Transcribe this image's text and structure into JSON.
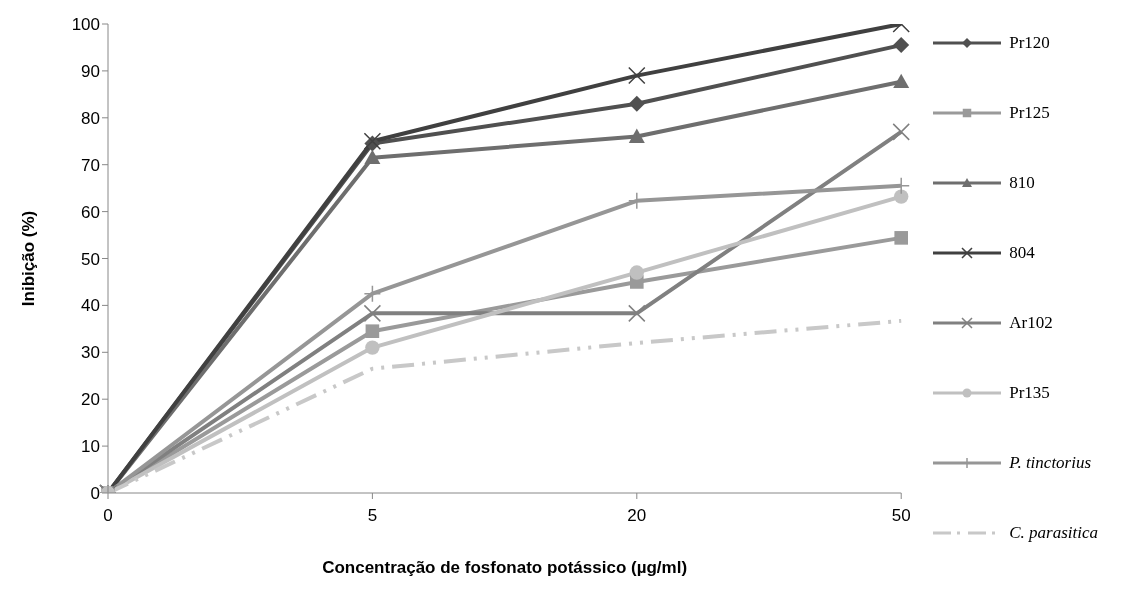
{
  "chart_data": {
    "type": "line",
    "xlabel": "Concentração de fosfonato potássico (µg/ml)",
    "ylabel": "Inibição (%)",
    "categories": [
      "0",
      "5",
      "20",
      "50"
    ],
    "series": [
      {
        "name": "Pr120",
        "color": "#505050",
        "marker": "diamond",
        "values": [
          0,
          74.5,
          83,
          95.5
        ]
      },
      {
        "name": "Pr125",
        "color": "#9a9a9a",
        "marker": "square",
        "values": [
          0,
          34.5,
          45,
          54.4
        ]
      },
      {
        "name": "810",
        "color": "#6e6e6e",
        "marker": "triangle",
        "values": [
          0,
          71.5,
          76,
          87.7
        ]
      },
      {
        "name": "804",
        "color": "#404040",
        "marker": "cross",
        "values": [
          0,
          75,
          89,
          100
        ]
      },
      {
        "name": "Ar102",
        "color": "#808080",
        "marker": "cross",
        "values": [
          0,
          38.3,
          38.3,
          77
        ]
      },
      {
        "name": "Pr135",
        "color": "#c0c0c0",
        "marker": "circle",
        "values": [
          0,
          31,
          47,
          63.2
        ]
      },
      {
        "name": "P. tinctorius",
        "color": "#969696",
        "marker": "plus",
        "values": [
          0,
          42.5,
          62.3,
          65.5
        ]
      },
      {
        "name": "C. parasitica",
        "color": "#c8c8c8",
        "marker": "none",
        "line_style": "dashed",
        "values": [
          0,
          26.5,
          32,
          36.7
        ]
      }
    ],
    "ylim": [
      0,
      100
    ],
    "yticks": [
      0,
      10,
      20,
      30,
      40,
      50,
      60,
      70,
      80,
      90,
      100
    ],
    "grid": false,
    "legend": "right"
  }
}
